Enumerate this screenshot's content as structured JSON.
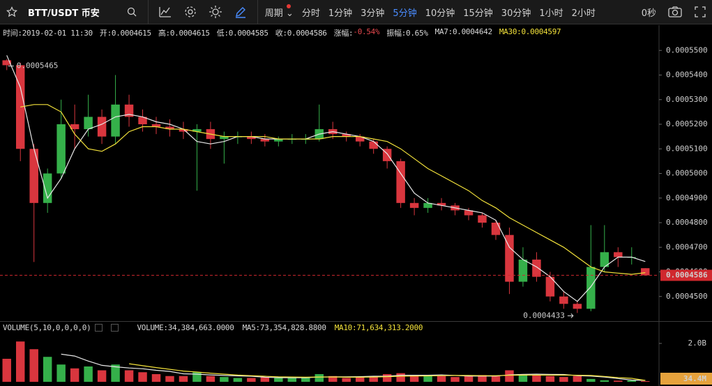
{
  "toolbar": {
    "symbol": "BTT/USDT 币安",
    "period": "周期",
    "intervals": [
      "分时",
      "1分钟",
      "3分钟",
      "5分钟",
      "10分钟",
      "15分钟",
      "30分钟",
      "1小时",
      "2小时"
    ],
    "active_interval": 3,
    "timer": "0秒"
  },
  "info": [
    {
      "text": "时间:2019-02-01 11:30"
    },
    {
      "text": "开:0.0004615"
    },
    {
      "text": "高:0.0004615"
    },
    {
      "text": "低:0.0004585"
    },
    {
      "text": "收:0.0004586"
    },
    {
      "text": "涨幅:"
    },
    {
      "text": "-0.54%",
      "color": "#e5484d"
    },
    {
      "text": "振幅:0.65%"
    },
    {
      "text": "MA7:0.0004642"
    },
    {
      "text": "MA30:0.0004597",
      "color": "#f2e13a"
    }
  ],
  "volume_info": [
    {
      "text": "VOLUME(5,10,0,0,0,0)"
    },
    {
      "text": "VOLUME:34,384,663.0000"
    },
    {
      "text": "MA5:73,354,828.8800"
    },
    {
      "text": "MA10:71,634,313.2000",
      "color": "#f2e13a"
    }
  ],
  "chart_data": {
    "type": "candlestick",
    "up_color": "#35b04a",
    "down_color": "#d9363e",
    "open": [
      0.000546,
      0.000544,
      0.00051,
      0.000488,
      0.0005,
      0.00052,
      0.000518,
      0.000523,
      0.000515,
      0.000528,
      0.000523,
      0.00052,
      0.000519,
      0.000518,
      0.000517,
      0.000518,
      0.000514,
      0.000515,
      0.000515,
      0.000514,
      0.000513,
      0.000514,
      0.000514,
      0.000514,
      0.000518,
      0.000516,
      0.000515,
      0.000513,
      0.00051,
      0.000505,
      0.000488,
      0.000486,
      0.000488,
      0.000487,
      0.000485,
      0.000483,
      0.00048,
      0.000475,
      0.000456,
      0.000465,
      0.000458,
      0.00045,
      0.000447,
      0.000445,
      0.000462,
      0.000468,
      0.000466,
      0.0004615
    ],
    "high": [
      0.0005465,
      0.000545,
      0.000512,
      0.000502,
      0.00053,
      0.000528,
      0.000532,
      0.000526,
      0.00054,
      0.000532,
      0.000526,
      0.000523,
      0.000522,
      0.000521,
      0.00052,
      0.000521,
      0.000517,
      0.000517,
      0.000517,
      0.000516,
      0.000515,
      0.000516,
      0.000516,
      0.000528,
      0.000521,
      0.000517,
      0.000516,
      0.000514,
      0.000511,
      0.000506,
      0.00049,
      0.00049,
      0.00049,
      0.000488,
      0.000486,
      0.000484,
      0.000481,
      0.000478,
      0.00047,
      0.000468,
      0.00046,
      0.000452,
      0.000448,
      0.000479,
      0.000479,
      0.00047,
      0.00047,
      0.0004615
    ],
    "low": [
      0.000542,
      0.000505,
      0.000464,
      0.000484,
      0.000498,
      0.00051,
      0.000515,
      0.000512,
      0.000512,
      0.000519,
      0.000517,
      0.000516,
      0.000515,
      0.000514,
      0.000493,
      0.00051,
      0.000504,
      0.000512,
      0.000512,
      0.000511,
      0.000511,
      0.000512,
      0.000512,
      0.000513,
      0.000514,
      0.000513,
      0.000511,
      0.000508,
      0.000502,
      0.000486,
      0.000483,
      0.000484,
      0.000485,
      0.000483,
      0.000481,
      0.000478,
      0.000473,
      0.000451,
      0.000454,
      0.000456,
      0.000448,
      0.000445,
      0.0004433,
      0.000444,
      0.00046,
      0.000462,
      0.000463,
      0.0004585
    ],
    "close": [
      0.000544,
      0.00051,
      0.000488,
      0.0005,
      0.00052,
      0.000518,
      0.000523,
      0.000515,
      0.000528,
      0.000523,
      0.00052,
      0.000519,
      0.000518,
      0.000517,
      0.000518,
      0.000514,
      0.000515,
      0.000515,
      0.000514,
      0.000513,
      0.000514,
      0.000514,
      0.000514,
      0.000518,
      0.000516,
      0.000515,
      0.000513,
      0.00051,
      0.000505,
      0.000488,
      0.000486,
      0.000488,
      0.000487,
      0.000485,
      0.000483,
      0.00048,
      0.000475,
      0.000456,
      0.000465,
      0.000458,
      0.00045,
      0.000447,
      0.000445,
      0.000462,
      0.000468,
      0.000466,
      0.000466,
      0.0004586
    ],
    "series": [
      {
        "color": "#e8e8e8",
        "values": [
          0.000548,
          0.000535,
          0.00051,
          0.00049,
          0.000498,
          0.00051,
          0.000518,
          0.00052,
          0.000523,
          0.000524,
          0.000523,
          0.000521,
          0.00052,
          0.000518,
          0.000513,
          0.000512,
          0.000513,
          0.000515,
          0.000515,
          0.000514,
          0.000514,
          0.000514,
          0.000514,
          0.000516,
          0.000517,
          0.000516,
          0.000515,
          0.000513,
          0.000508,
          0.0005,
          0.000492,
          0.000488,
          0.000487,
          0.000486,
          0.000485,
          0.000484,
          0.000481,
          0.00047,
          0.000465,
          0.000462,
          0.000458,
          0.000452,
          0.000448,
          0.000454,
          0.000462,
          0.000466,
          0.000466,
          0.0004642
        ]
      },
      {
        "color": "#f2e13a",
        "values": [
          null,
          0.000527,
          0.000528,
          0.000528,
          0.000525,
          0.000516,
          0.00051,
          0.000509,
          0.000512,
          0.000517,
          0.000519,
          0.000519,
          0.000518,
          0.000518,
          0.000517,
          0.000516,
          0.000515,
          0.000515,
          0.000515,
          0.000515,
          0.000514,
          0.000514,
          0.000514,
          0.000514,
          0.000515,
          0.000515,
          0.000515,
          0.000514,
          0.000513,
          0.00051,
          0.000506,
          0.000502,
          0.000499,
          0.000496,
          0.000493,
          0.000489,
          0.000486,
          0.000482,
          0.000479,
          0.000476,
          0.000473,
          0.00047,
          0.000466,
          0.000462,
          0.00046,
          0.0004595,
          0.000459,
          0.0004597
        ]
      }
    ],
    "ylim": [
      0.00044,
      0.00056
    ],
    "yticks": [
      {
        "value": 0.00055,
        "label": "0.0005500"
      },
      {
        "value": 0.00054,
        "label": "0.0005400"
      },
      {
        "value": 0.00053,
        "label": "0.0005300"
      },
      {
        "value": 0.00052,
        "label": "0.0005200"
      },
      {
        "value": 0.00051,
        "label": "0.0005100"
      },
      {
        "value": 0.0005,
        "label": "0.0005000"
      },
      {
        "value": 0.00049,
        "label": "0.0004900"
      },
      {
        "value": 0.00048,
        "label": "0.0004800"
      },
      {
        "value": 0.00047,
        "label": "0.0004700"
      },
      {
        "value": 0.00046,
        "label": "0.0004600"
      },
      {
        "value": 0.00045,
        "label": "0.0004500"
      }
    ],
    "max_label": "0.0005465",
    "min_label": "0.0004433",
    "price_marker": {
      "value": 0.0004586,
      "label": "0.0004586",
      "color": "#d0282e"
    },
    "volume": [
      1200000000,
      2100000000,
      1700000000,
      1300000000,
      900000000,
      700000000,
      800000000,
      600000000,
      900000000,
      600000000,
      500000000,
      400000000,
      300000000,
      300000000,
      500000000,
      300000000,
      250000000,
      200000000,
      200000000,
      250000000,
      200000000,
      200000000,
      200000000,
      400000000,
      300000000,
      200000000,
      250000000,
      300000000,
      400000000,
      450000000,
      350000000,
      300000000,
      300000000,
      250000000,
      300000000,
      350000000,
      300000000,
      600000000,
      400000000,
      350000000,
      300000000,
      250000000,
      300000000,
      150000000,
      80000000,
      60000000,
      70000000,
      34384663
    ],
    "volume_series": [
      {
        "color": "#e8e8e8",
        "values": [
          null,
          null,
          null,
          null,
          1440000000,
          1340000000,
          1080000000,
          860000000,
          780000000,
          720000000,
          680000000,
          600000000,
          540000000,
          420000000,
          400000000,
          360000000,
          330000000,
          310000000,
          290000000,
          240000000,
          220000000,
          210000000,
          210000000,
          250000000,
          260000000,
          260000000,
          270000000,
          290000000,
          290000000,
          340000000,
          340000000,
          340000000,
          360000000,
          330000000,
          300000000,
          300000000,
          300000000,
          360000000,
          390000000,
          400000000,
          390000000,
          380000000,
          320000000,
          300000000,
          250000000,
          170000000,
          90000000,
          73354828.88
        ]
      },
      {
        "color": "#f2e13a",
        "values": [
          null,
          null,
          null,
          null,
          null,
          null,
          null,
          null,
          null,
          940000000,
          840000000,
          740000000,
          650000000,
          560000000,
          510000000,
          450000000,
          400000000,
          350000000,
          320000000,
          290000000,
          260000000,
          250000000,
          240000000,
          250000000,
          250000000,
          240000000,
          240000000,
          250000000,
          270000000,
          290000000,
          300000000,
          310000000,
          320000000,
          330000000,
          330000000,
          320000000,
          320000000,
          340000000,
          350000000,
          350000000,
          350000000,
          350000000,
          340000000,
          330000000,
          280000000,
          220000000,
          180000000,
          71634313.2
        ]
      }
    ],
    "vlim": [
      0,
      2800000000
    ],
    "vticks": [
      {
        "value": 2000000000,
        "label": "2.0B"
      }
    ],
    "volume_marker": {
      "value": 34384663,
      "label": "34.4M",
      "color": "#e6a23c"
    }
  }
}
